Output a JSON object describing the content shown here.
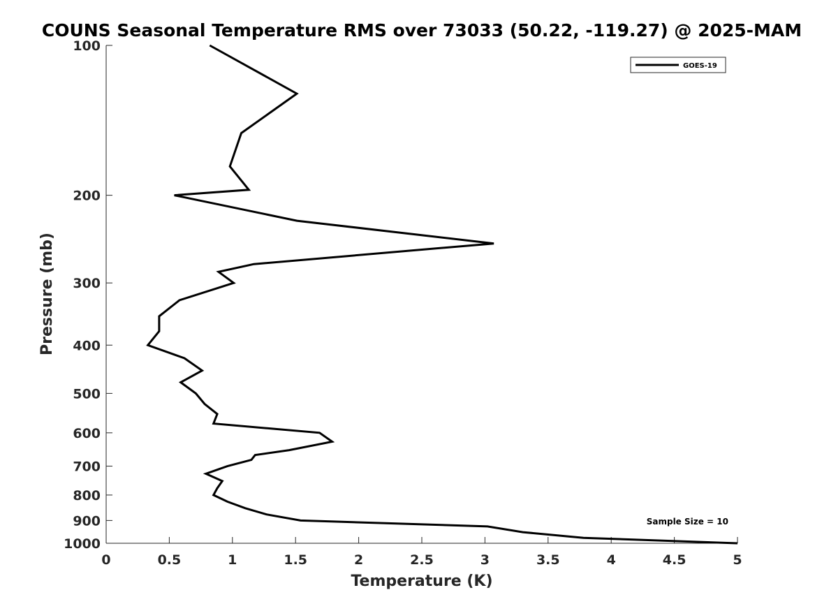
{
  "chart_data": {
    "type": "line",
    "title": "COUNS Seasonal Temperature RMS over 73033 (50.22, -119.27) @ 2025-MAM",
    "xlabel": "Temperature (K)",
    "ylabel": "Pressure (mb)",
    "xlim": [
      0,
      5
    ],
    "ylim": [
      1000,
      100
    ],
    "yscale": "log",
    "xticks": [
      0,
      0.5,
      1,
      1.5,
      2,
      2.5,
      3,
      3.5,
      4,
      4.5,
      5
    ],
    "xtick_labels": [
      "0",
      "0.5",
      "1",
      "1.5",
      "2",
      "2.5",
      "3",
      "3.5",
      "4",
      "4.5",
      "5"
    ],
    "yticks": [
      100,
      200,
      300,
      400,
      500,
      600,
      700,
      800,
      900,
      1000
    ],
    "ytick_labels": [
      "100",
      "200",
      "300",
      "400",
      "500",
      "600",
      "700",
      "800",
      "900",
      "1000"
    ],
    "grid": false,
    "legend_position": "top-right",
    "series": [
      {
        "name": "GOES-19",
        "color": "#000000",
        "points": [
          [
            0.82,
            100
          ],
          [
            1.51,
            125
          ],
          [
            1.07,
            150
          ],
          [
            0.98,
            175
          ],
          [
            1.13,
            195
          ],
          [
            0.54,
            200
          ],
          [
            1.51,
            225
          ],
          [
            3.07,
            250
          ],
          [
            1.17,
            275
          ],
          [
            0.89,
            285
          ],
          [
            1.01,
            300
          ],
          [
            0.58,
            325
          ],
          [
            0.42,
            350
          ],
          [
            0.42,
            375
          ],
          [
            0.33,
            400
          ],
          [
            0.62,
            425
          ],
          [
            0.76,
            450
          ],
          [
            0.59,
            475
          ],
          [
            0.71,
            500
          ],
          [
            0.78,
            525
          ],
          [
            0.88,
            550
          ],
          [
            0.85,
            575
          ],
          [
            1.69,
            600
          ],
          [
            1.79,
            625
          ],
          [
            1.45,
            650
          ],
          [
            1.18,
            665
          ],
          [
            1.15,
            680
          ],
          [
            0.96,
            700
          ],
          [
            0.79,
            725
          ],
          [
            0.92,
            750
          ],
          [
            0.88,
            775
          ],
          [
            0.85,
            800
          ],
          [
            0.96,
            825
          ],
          [
            1.1,
            850
          ],
          [
            1.27,
            875
          ],
          [
            1.54,
            900
          ],
          [
            3.02,
            925
          ],
          [
            3.3,
            950
          ],
          [
            3.78,
            975
          ],
          [
            5.0,
            1000
          ]
        ]
      }
    ],
    "annotation": "Sample Size = 10"
  }
}
